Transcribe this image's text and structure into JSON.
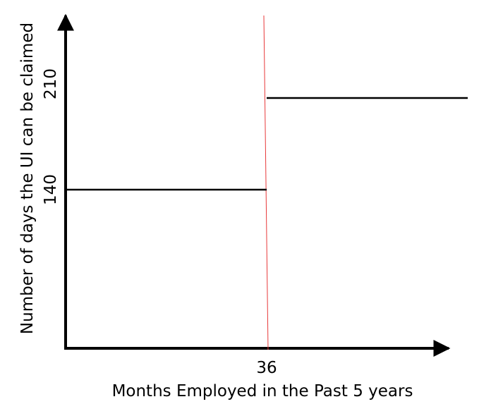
{
  "chart_data": {
    "type": "line",
    "title": "",
    "xlabel": "Months Employed in the Past 5 years",
    "ylabel": "Number of days the UI can be claimed",
    "x_ticks": [
      "36"
    ],
    "y_ticks": [
      "140",
      "210"
    ],
    "threshold_x": 36,
    "series": [
      {
        "segments": [
          {
            "x": [
              0,
              36
            ],
            "y": [
              140,
              140
            ]
          },
          {
            "x": [
              36,
              72
            ],
            "y": [
              210,
              210
            ]
          }
        ]
      }
    ],
    "grid": false,
    "legend": "none",
    "colors": {
      "axis": "#000000",
      "series": "#000000",
      "threshold": "#e8393a"
    }
  }
}
